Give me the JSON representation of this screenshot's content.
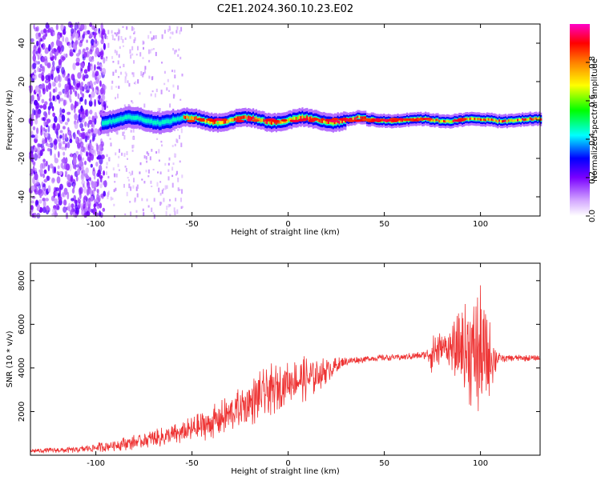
{
  "title": "C2E1.2024.360.10.23.E02",
  "chart_data": [
    {
      "type": "heatmap",
      "xlabel": "Height of straight line (km)",
      "ylabel": "Frequency (Hz)",
      "xlim": [
        -134,
        131
      ],
      "ylim": [
        -50,
        50
      ],
      "x_ticks": [
        -100,
        -50,
        0,
        50,
        100
      ],
      "y_ticks": [
        -40,
        -20,
        0,
        20,
        40
      ],
      "colorbar": {
        "label": "Normalized spectral amplitude",
        "range": [
          0,
          1
        ],
        "ticks": [
          0.0,
          0.2,
          0.4,
          0.6,
          0.8
        ]
      },
      "colorscale": [
        "#ffffff",
        "#e6c8ff",
        "#8a2be2",
        "#0000ff",
        "#00ffff",
        "#00ff00",
        "#ffff00",
        "#ff8000",
        "#ff0000",
        "#ff00c8"
      ],
      "features": {
        "noise_region_x": [
          -134,
          -95
        ],
        "faint_noise_x": [
          -95,
          -55
        ],
        "signal_start_x": -97,
        "signal_center_freq": 0,
        "high_amplitude_x": [
          -55,
          95
        ]
      }
    },
    {
      "type": "line",
      "xlabel": "Height of straight line (km)",
      "ylabel": "SNR (10 * v/v)",
      "xlim": [
        -134,
        131
      ],
      "ylim": [
        0,
        8800
      ],
      "x_ticks": [
        -100,
        -50,
        0,
        50,
        100
      ],
      "y_ticks": [
        2000,
        4000,
        6000,
        8000
      ],
      "color": "#ee3333",
      "envelope": {
        "x": [
          -134,
          -110,
          -95,
          -80,
          -60,
          -45,
          -30,
          -20,
          -10,
          0,
          10,
          20,
          30,
          45,
          60,
          72,
          76,
          80,
          85,
          90,
          95,
          100,
          104,
          110,
          120,
          131
        ],
        "base": [
          200,
          250,
          400,
          600,
          900,
          1300,
          1900,
          2400,
          2900,
          3400,
          3500,
          3900,
          4300,
          4450,
          4500,
          4600,
          4800,
          4900,
          4900,
          4800,
          4700,
          4600,
          4500,
          4450,
          4450,
          4450
        ],
        "amp": [
          100,
          150,
          250,
          350,
          500,
          700,
          900,
          1100,
          1300,
          900,
          1100,
          600,
          200,
          150,
          150,
          200,
          1400,
          600,
          1000,
          2000,
          2600,
          3200,
          2000,
          200,
          150,
          150
        ]
      }
    }
  ]
}
